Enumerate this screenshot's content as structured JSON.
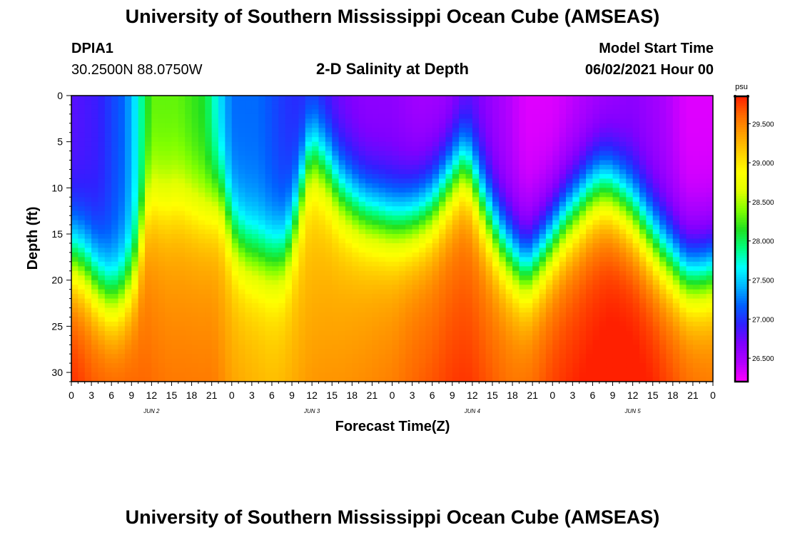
{
  "header": {
    "title": "University of Southern Mississippi Ocean Cube (AMSEAS)",
    "station_id": "DPIA1",
    "coords": "30.2500N  88.0750W",
    "chart_title": "2-D Salinity at Depth",
    "model_start_label": "Model Start Time",
    "model_start_value": "06/02/2021 Hour 00"
  },
  "footer": {
    "title": "University of Southern Mississippi Ocean Cube (AMSEAS)"
  },
  "colors": {
    "palette": [
      "#ff00ff",
      "#b100ff",
      "#8000ff",
      "#3020ff",
      "#0060ff",
      "#00b4ff",
      "#00ffff",
      "#00ff80",
      "#20e020",
      "#80ff00",
      "#e0ff00",
      "#ffff00",
      "#ffd000",
      "#ffa000",
      "#ff6a00",
      "#ff2000"
    ]
  },
  "chart_data": {
    "type": "heatmap",
    "title": "2-D Salinity at Depth",
    "xlabel": "Forecast Time(Z)",
    "ylabel": "Depth (ft)",
    "x_hours": [
      0,
      96
    ],
    "x_tick_labels": [
      "0",
      "3",
      "6",
      "9",
      "12",
      "15",
      "18",
      "21",
      "0",
      "3",
      "6",
      "9",
      "12",
      "15",
      "18",
      "21",
      "0",
      "3",
      "6",
      "9",
      "12",
      "15",
      "18",
      "21",
      "0",
      "3",
      "6",
      "9",
      "12",
      "15",
      "18",
      "21",
      "0"
    ],
    "day_labels": [
      {
        "label": "JUN 2",
        "hour": 12
      },
      {
        "label": "JUN 3",
        "hour": 36
      },
      {
        "label": "JUN 4",
        "hour": 60
      },
      {
        "label": "JUN 5",
        "hour": 84
      }
    ],
    "ylim": [
      0,
      31
    ],
    "y_ticks": [
      0,
      5,
      10,
      15,
      20,
      25,
      30
    ],
    "y_tick_labels": [
      "0",
      "5",
      "10",
      "15",
      "20",
      "25",
      "30"
    ],
    "colorbar": {
      "unit": "psu",
      "range": [
        26.2,
        29.85
      ],
      "ticks": [
        26.5,
        27.0,
        27.5,
        28.0,
        28.5,
        29.0,
        29.5
      ],
      "tick_labels": [
        "26.500",
        "27.000",
        "27.500",
        "28.000",
        "28.500",
        "29.000",
        "29.500"
      ]
    },
    "halocline": {
      "hours": [
        0,
        2,
        4,
        6,
        8,
        10,
        11,
        12,
        14,
        16,
        18,
        20,
        22,
        23,
        24,
        26,
        28,
        30,
        32,
        34,
        35,
        36,
        38,
        40,
        42,
        44,
        46,
        48,
        50,
        52,
        54,
        56,
        58,
        59,
        60,
        62,
        64,
        66,
        68,
        70,
        72,
        74,
        76,
        78,
        80,
        82,
        84,
        86,
        88,
        90,
        92,
        94,
        96
      ],
      "depth_ft": [
        17.5,
        18.5,
        20.5,
        22.0,
        21.0,
        18.0,
        12.0,
        11.0,
        11.5,
        11.0,
        11.5,
        12.0,
        11.0,
        12.0,
        14.5,
        16.5,
        17.0,
        17.5,
        17.0,
        12.0,
        8.0,
        6.0,
        7.5,
        10.0,
        11.5,
        12.5,
        13.0,
        13.5,
        13.5,
        13.0,
        12.0,
        10.0,
        8.0,
        7.5,
        9.0,
        12.5,
        15.5,
        17.5,
        19.0,
        17.5,
        15.5,
        13.5,
        12.0,
        10.5,
        10.0,
        11.0,
        12.5,
        14.5,
        16.5,
        18.0,
        19.5,
        19.5,
        19.0
      ]
    },
    "deep_salinity": {
      "hours": [
        0,
        3,
        6,
        9,
        12,
        15,
        18,
        21,
        24,
        27,
        30,
        33,
        36,
        39,
        42,
        45,
        48,
        51,
        54,
        57,
        60,
        63,
        66,
        69,
        72,
        75,
        78,
        81,
        84,
        87,
        90,
        93,
        96
      ],
      "psu": [
        29.65,
        29.55,
        29.55,
        29.5,
        29.35,
        29.3,
        29.3,
        29.3,
        29.15,
        29.1,
        29.05,
        29.1,
        29.1,
        29.15,
        29.2,
        29.25,
        29.3,
        29.4,
        29.45,
        29.5,
        29.5,
        29.45,
        29.4,
        29.45,
        29.55,
        29.6,
        29.65,
        29.7,
        29.7,
        29.65,
        29.55,
        29.45,
        29.4
      ]
    },
    "surface_salinity": {
      "hours": [
        0,
        4,
        8,
        10,
        12,
        16,
        20,
        22,
        24,
        28,
        32,
        36,
        40,
        44,
        48,
        52,
        56,
        60,
        64,
        68,
        72,
        76,
        80,
        84,
        88,
        92,
        96
      ],
      "psu": [
        26.8,
        26.9,
        27.2,
        27.7,
        28.3,
        28.3,
        28.1,
        27.6,
        27.2,
        27.2,
        27.0,
        26.9,
        26.7,
        26.6,
        26.6,
        26.5,
        26.5,
        26.7,
        26.5,
        26.3,
        26.3,
        26.4,
        26.5,
        26.6,
        26.5,
        26.3,
        26.3
      ]
    }
  }
}
